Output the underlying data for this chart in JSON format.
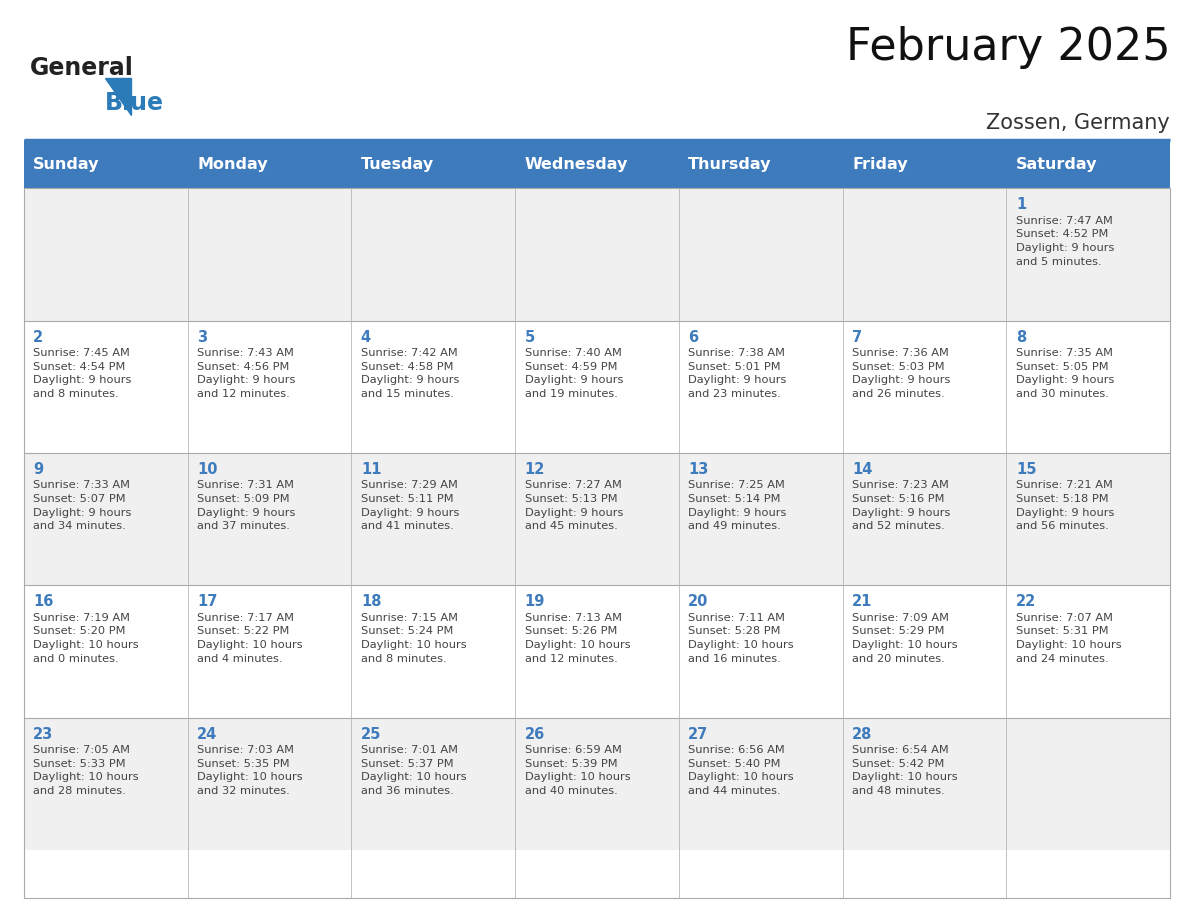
{
  "title": "February 2025",
  "location": "Zossen, Germany",
  "header_bg_color": "#3E7BBD",
  "header_text_color": "#FFFFFF",
  "day_names": [
    "Sunday",
    "Monday",
    "Tuesday",
    "Wednesday",
    "Thursday",
    "Friday",
    "Saturday"
  ],
  "cell_bg_even": "#F0F0F0",
  "cell_bg_odd": "#FFFFFF",
  "day_num_color": "#3E7BBD",
  "text_color": "#444444",
  "logo_general_color": "#222222",
  "logo_blue_color": "#2B7BB9",
  "weeks": [
    [
      null,
      null,
      null,
      null,
      null,
      null,
      {
        "day": 1,
        "sunrise": "7:47 AM",
        "sunset": "4:52 PM",
        "daylight": "9 hours\nand 5 minutes."
      }
    ],
    [
      {
        "day": 2,
        "sunrise": "7:45 AM",
        "sunset": "4:54 PM",
        "daylight": "9 hours\nand 8 minutes."
      },
      {
        "day": 3,
        "sunrise": "7:43 AM",
        "sunset": "4:56 PM",
        "daylight": "9 hours\nand 12 minutes."
      },
      {
        "day": 4,
        "sunrise": "7:42 AM",
        "sunset": "4:58 PM",
        "daylight": "9 hours\nand 15 minutes."
      },
      {
        "day": 5,
        "sunrise": "7:40 AM",
        "sunset": "4:59 PM",
        "daylight": "9 hours\nand 19 minutes."
      },
      {
        "day": 6,
        "sunrise": "7:38 AM",
        "sunset": "5:01 PM",
        "daylight": "9 hours\nand 23 minutes."
      },
      {
        "day": 7,
        "sunrise": "7:36 AM",
        "sunset": "5:03 PM",
        "daylight": "9 hours\nand 26 minutes."
      },
      {
        "day": 8,
        "sunrise": "7:35 AM",
        "sunset": "5:05 PM",
        "daylight": "9 hours\nand 30 minutes."
      }
    ],
    [
      {
        "day": 9,
        "sunrise": "7:33 AM",
        "sunset": "5:07 PM",
        "daylight": "9 hours\nand 34 minutes."
      },
      {
        "day": 10,
        "sunrise": "7:31 AM",
        "sunset": "5:09 PM",
        "daylight": "9 hours\nand 37 minutes."
      },
      {
        "day": 11,
        "sunrise": "7:29 AM",
        "sunset": "5:11 PM",
        "daylight": "9 hours\nand 41 minutes."
      },
      {
        "day": 12,
        "sunrise": "7:27 AM",
        "sunset": "5:13 PM",
        "daylight": "9 hours\nand 45 minutes."
      },
      {
        "day": 13,
        "sunrise": "7:25 AM",
        "sunset": "5:14 PM",
        "daylight": "9 hours\nand 49 minutes."
      },
      {
        "day": 14,
        "sunrise": "7:23 AM",
        "sunset": "5:16 PM",
        "daylight": "9 hours\nand 52 minutes."
      },
      {
        "day": 15,
        "sunrise": "7:21 AM",
        "sunset": "5:18 PM",
        "daylight": "9 hours\nand 56 minutes."
      }
    ],
    [
      {
        "day": 16,
        "sunrise": "7:19 AM",
        "sunset": "5:20 PM",
        "daylight": "10 hours\nand 0 minutes."
      },
      {
        "day": 17,
        "sunrise": "7:17 AM",
        "sunset": "5:22 PM",
        "daylight": "10 hours\nand 4 minutes."
      },
      {
        "day": 18,
        "sunrise": "7:15 AM",
        "sunset": "5:24 PM",
        "daylight": "10 hours\nand 8 minutes."
      },
      {
        "day": 19,
        "sunrise": "7:13 AM",
        "sunset": "5:26 PM",
        "daylight": "10 hours\nand 12 minutes."
      },
      {
        "day": 20,
        "sunrise": "7:11 AM",
        "sunset": "5:28 PM",
        "daylight": "10 hours\nand 16 minutes."
      },
      {
        "day": 21,
        "sunrise": "7:09 AM",
        "sunset": "5:29 PM",
        "daylight": "10 hours\nand 20 minutes."
      },
      {
        "day": 22,
        "sunrise": "7:07 AM",
        "sunset": "5:31 PM",
        "daylight": "10 hours\nand 24 minutes."
      }
    ],
    [
      {
        "day": 23,
        "sunrise": "7:05 AM",
        "sunset": "5:33 PM",
        "daylight": "10 hours\nand 28 minutes."
      },
      {
        "day": 24,
        "sunrise": "7:03 AM",
        "sunset": "5:35 PM",
        "daylight": "10 hours\nand 32 minutes."
      },
      {
        "day": 25,
        "sunrise": "7:01 AM",
        "sunset": "5:37 PM",
        "daylight": "10 hours\nand 36 minutes."
      },
      {
        "day": 26,
        "sunrise": "6:59 AM",
        "sunset": "5:39 PM",
        "daylight": "10 hours\nand 40 minutes."
      },
      {
        "day": 27,
        "sunrise": "6:56 AM",
        "sunset": "5:40 PM",
        "daylight": "10 hours\nand 44 minutes."
      },
      {
        "day": 28,
        "sunrise": "6:54 AM",
        "sunset": "5:42 PM",
        "daylight": "10 hours\nand 48 minutes."
      },
      null
    ]
  ],
  "fig_width": 11.88,
  "fig_height": 9.18,
  "title_fontsize": 32,
  "subtitle_fontsize": 15,
  "day_name_fontsize": 11.5,
  "day_num_fontsize": 10.5,
  "cell_text_fontsize": 8.2
}
